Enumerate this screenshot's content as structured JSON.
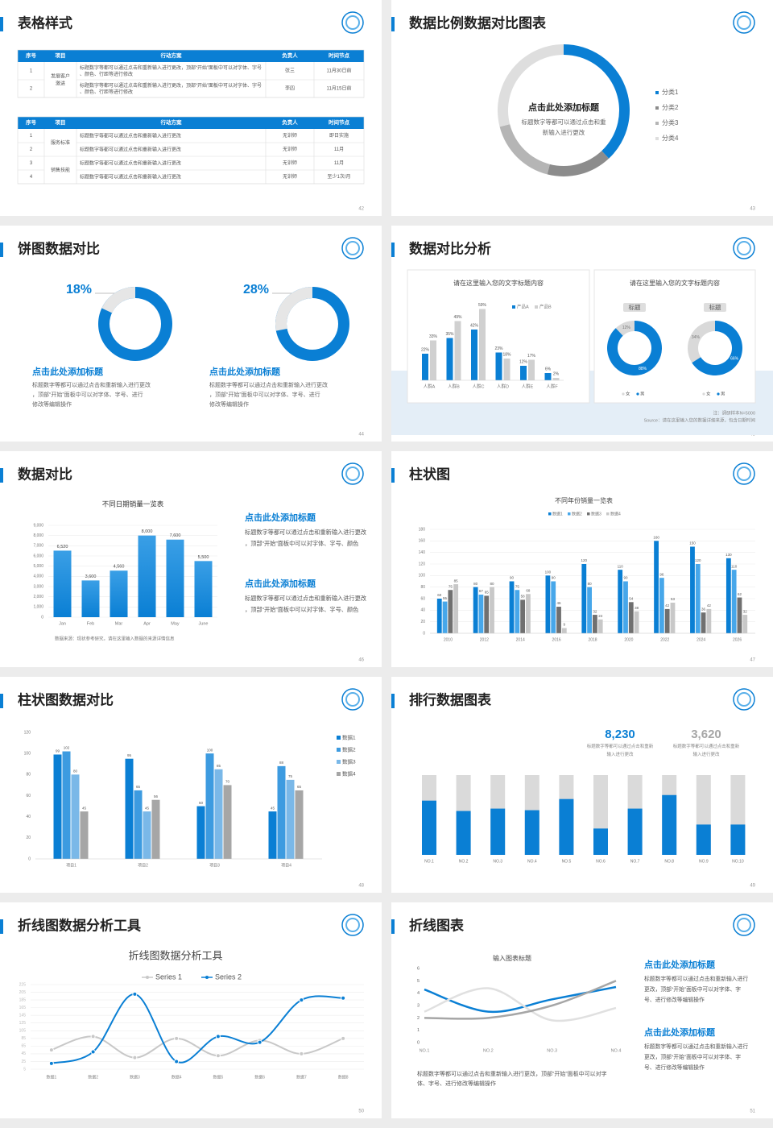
{
  "slides": [
    {
      "page": 42,
      "title": "表格样式",
      "tables": [
        {
          "header": [
            "序号",
            "项目",
            "行动方案",
            "负责人",
            "时间节点"
          ],
          "groups": [
            {
              "project": "发展客户激进",
              "rows": [
                [
                  "1",
                  "标题数字等都可以通过点击和重新输入进行更改，顶部“开始”面板中可以对字体、字号、颜色、行距等进行修改",
                  "张三",
                  "11月30日前"
                ],
                [
                  "2",
                  "标题数字等都可以通过点击和重新输入进行更改，顶部“开始”面板中可以对字体、字号、颜色、行距等进行修改",
                  "李四",
                  "11月15日前"
                ]
              ]
            }
          ]
        },
        {
          "header": [
            "序号",
            "项目",
            "行动方案",
            "负责人",
            "时间节点"
          ],
          "groups": [
            {
              "project": "服务标准",
              "rows": [
                [
                  "1",
                  "标题数字等都可以通过点击和重新输入进行更改",
                  "无训师",
                  "即日实施"
                ],
                [
                  "2",
                  "标题数字等都可以通过点击和重新输入进行更改",
                  "无训师",
                  "11月"
                ]
              ]
            },
            {
              "project": "销售技能",
              "rows": [
                [
                  "3",
                  "标题数字等都可以通过点击和重新输入进行更改",
                  "无训师",
                  "11月"
                ],
                [
                  "4",
                  "标题数字等都可以通过点击和重新输入进行更改",
                  "无训师",
                  "至少1次/月"
                ]
              ]
            }
          ]
        }
      ]
    },
    {
      "page": 43,
      "title": "数据比例数据对比图表",
      "center_title": "点击此处添加标题",
      "center_text": "标题数字等都可以通过点击和重新输入进行更改",
      "chart": {
        "type": "donut",
        "categories": [
          "分类1",
          "分类2",
          "分类3",
          "分类4"
        ],
        "values": [
          38,
          16,
          17,
          29
        ],
        "colors": [
          "#0a7fd4",
          "#8c8c8c",
          "#b5b5b5",
          "#dedede"
        ]
      }
    },
    {
      "page": 44,
      "title": "饼图数据对比",
      "items": [
        {
          "value": 18,
          "value_label": "18%",
          "title": "点击此处添加标题",
          "text": "标题数字等都可以通过点击和重新输入进行更改，顶部“开始”面板中可以对字体、字号、进行修改等编辑操作"
        },
        {
          "value": 28,
          "value_label": "28%",
          "title": "点击此处添加标题",
          "text": "标题数字等都可以通过点击和重新输入进行更改，顶部“开始”面板中可以对字体、字号、进行修改等编辑操作"
        }
      ]
    },
    {
      "page": 45,
      "title": "数据对比分析",
      "bar_panel": {
        "type": "bar",
        "title": "请在这里输入您的文字标题内容",
        "categories": [
          "人群A",
          "人群B",
          "人群C",
          "人群D",
          "人群E",
          "人群F"
        ],
        "series": [
          {
            "name": "产品A",
            "color": "#0a7fd4",
            "values": [
              22,
              35,
              42,
              23,
              12,
              6
            ],
            "value_labels": [
              "22%",
              "35%",
              "42%",
              "23%",
              "12%",
              "6%"
            ]
          },
          {
            "name": "产品B",
            "color": "#d0d0d0",
            "values": [
              33,
              49,
              59,
              18,
              17,
              2
            ],
            "value_labels": [
              "33%",
              "49%",
              "59%",
              "18%",
              "17%",
              "2%"
            ]
          }
        ]
      },
      "donut_panel": {
        "type": "donut",
        "title": "请在这里输入您的文字标题内容",
        "legend": [
          "女",
          "男"
        ],
        "colors": [
          "#d9d9d9",
          "#0a7fd4"
        ],
        "donuts": [
          {
            "label": "标题",
            "values": [
              12,
              88
            ],
            "value_labels": [
              "12%",
              "88%"
            ]
          },
          {
            "label": "标题",
            "values": [
              34,
              66
            ],
            "value_labels": [
              "34%",
              "66%"
            ]
          }
        ]
      },
      "notes": [
        "注：调研样本N=5000",
        "Source：请在这里输入您的数据详细来源，包含日期时间"
      ]
    },
    {
      "page": 46,
      "title": "数据对比",
      "chart": {
        "type": "bar",
        "title": "不同日期销量一览表",
        "categories": [
          "Jan",
          "Feb",
          "Mar",
          "Apr",
          "May",
          "June"
        ],
        "values": [
          6520,
          3600,
          4560,
          8000,
          7600,
          5500
        ],
        "value_labels": [
          "6,520",
          "3,600",
          "4,560",
          "8,000",
          "7,600",
          "5,500"
        ],
        "color": "#0a7fd4",
        "ylim": [
          0,
          9000
        ],
        "yticks": [
          0,
          {
            "value": 1000,
            "label": "1,000"
          },
          {
            "value": 2000,
            "label": "2,000"
          },
          {
            "value": 3000,
            "label": "3,000"
          },
          {
            "value": 4000,
            "label": "4,000"
          },
          {
            "value": 5000,
            "label": "5,000"
          },
          {
            "value": 6000,
            "label": "6,000"
          },
          {
            "value": 7000,
            "label": "7,000"
          },
          {
            "value": 8000,
            "label": "8,000"
          },
          {
            "value": 9000,
            "label": "9,000"
          }
        ],
        "grid": true,
        "source": "数据来源：现状参考研究，请在这里输入数据的来源详情信息"
      },
      "blurbs": [
        {
          "title": "点击此处添加标题",
          "text": "标题数字等都可以通过点击和重新输入进行更改，顶部“开始”面板中可以对字体、字号、颜色"
        },
        {
          "title": "点击此处添加标题",
          "text": "标题数字等都可以通过点击和重新输入进行更改，顶部“开始”面板中可以对字体、字号、颜色"
        }
      ]
    },
    {
      "page": 47,
      "title": "柱状图",
      "chart": {
        "type": "bar",
        "title": "不同年份销量一览表",
        "categories": [
          "2010",
          "2012",
          "2014",
          "2016",
          "2018",
          "2020",
          "2022",
          "2024",
          "2026"
        ],
        "ylim": [
          0,
          180
        ],
        "yticks": [
          0,
          20,
          40,
          60,
          80,
          100,
          120,
          140,
          160,
          180
        ],
        "grid": true,
        "series": [
          {
            "name": "数据1",
            "color": "#0a7fd4",
            "values": [
              60,
              80,
              90,
              100,
              120,
              110,
              160,
              150,
              130
            ]
          },
          {
            "name": "数据2",
            "color": "#47a7ea",
            "values": [
              55,
              67,
              75,
              90,
              80,
              90,
              96,
              120,
              110
            ]
          },
          {
            "name": "数据3",
            "color": "#707070",
            "values": [
              75,
              65,
              58,
              46,
              32,
              54,
              42,
              36,
              62
            ]
          },
          {
            "name": "数据4",
            "color": "#c8c8c8",
            "values": [
              85,
              80,
              68,
              9,
              24,
              38,
              53,
              42,
              32
            ]
          }
        ]
      }
    },
    {
      "page": 48,
      "title": "柱状图数据对比",
      "chart": {
        "type": "bar",
        "categories": [
          "项目1",
          "项目2",
          "项目3",
          "项目4"
        ],
        "ylim": [
          0,
          120
        ],
        "yticks": [
          0,
          20,
          40,
          60,
          80,
          100,
          120
        ],
        "grid": false,
        "series": [
          {
            "name": "数据1",
            "color": "#0a7fd4",
            "values": [
              99,
              95,
              50,
              45
            ]
          },
          {
            "name": "数据2",
            "color": "#3d9be0",
            "values": [
              102,
              65,
              100,
              88
            ]
          },
          {
            "name": "数据3",
            "color": "#7ab8e8",
            "values": [
              80,
              45,
              85,
              75
            ]
          },
          {
            "name": "数据4",
            "color": "#a6a6a6",
            "values": [
              45,
              56,
              70,
              65
            ]
          }
        ]
      }
    },
    {
      "page": 49,
      "title": "排行数据图表",
      "stats": [
        {
          "value": "8,230",
          "color": "#0a7fd4",
          "text": "标题数字等都可以通过点击和重新输入进行更改"
        },
        {
          "value": "3,620",
          "color": "#a6a6a6",
          "text": "标题数字等都可以通过点击和重新输入进行更改"
        }
      ],
      "chart": {
        "type": "stacked-bar",
        "categories": [
          "NO.1",
          "NO.2",
          "NO.3",
          "NO.4",
          "NO.5",
          "NO.6",
          "NO.7",
          "NO.8",
          "NO.9",
          "NO.10"
        ],
        "values": [
          68,
          55,
          58,
          56,
          70,
          33,
          58,
          75,
          38,
          38
        ],
        "ylim": [
          0,
          100
        ],
        "color": "#0a7fd4"
      }
    },
    {
      "page": 50,
      "title": "折线图数据分析工具",
      "chart": {
        "type": "line",
        "title": "折线图数据分析工具",
        "categories": [
          "数据1",
          "数据2",
          "数据3",
          "数据4",
          "数据5",
          "数据6",
          "数据7",
          "数据8"
        ],
        "ylim": [
          5,
          225
        ],
        "yticks": [
          5,
          25,
          45,
          65,
          85,
          105,
          125,
          145,
          165,
          185,
          205,
          225
        ],
        "grid": true,
        "series": [
          {
            "name": "Series 1",
            "color": "#c8c8c8",
            "values": [
              55,
              90,
              35,
              85,
              40,
              80,
              45,
              85
            ]
          },
          {
            "name": "Series 2",
            "color": "#0a7fd4",
            "values": [
              20,
              50,
              200,
              25,
              90,
              75,
              185,
              190
            ]
          }
        ]
      }
    },
    {
      "page": 51,
      "title": "折线图表",
      "chart": {
        "type": "line",
        "title": "输入图表标题",
        "categories": [
          "NO.1",
          "NO.2",
          "NO.3",
          "NO.4"
        ],
        "ylim": [
          0,
          6
        ],
        "yticks": [
          0,
          1,
          2,
          3,
          4,
          5,
          6
        ],
        "series": [
          {
            "color": "#0a7fd4",
            "values": [
              4.3,
              2.5,
              3.5,
              4.5
            ]
          },
          {
            "color": "#e0e0e0",
            "values": [
              2.5,
              4.4,
              1.8,
              2.8
            ]
          },
          {
            "color": "#a6a6a6",
            "values": [
              2,
              2,
              3,
              5
            ]
          }
        ]
      },
      "footer": "标题数字等都可以通过点击和重新输入进行更改，顶部“开始”面板中可以对字体、字号、进行修改等编辑操作",
      "blurbs": [
        {
          "title": "点击此处添加标题",
          "text": "标题数字等都可以通过点击和重新输入进行更改，顶部“开始”面板中可以对字体、字号、进行修改等编辑操作"
        },
        {
          "title": "点击此处添加标题",
          "text": "标题数字等都可以通过点击和重新输入进行更改，顶部“开始”面板中可以对字体、字号、进行修改等编辑操作"
        }
      ]
    }
  ]
}
